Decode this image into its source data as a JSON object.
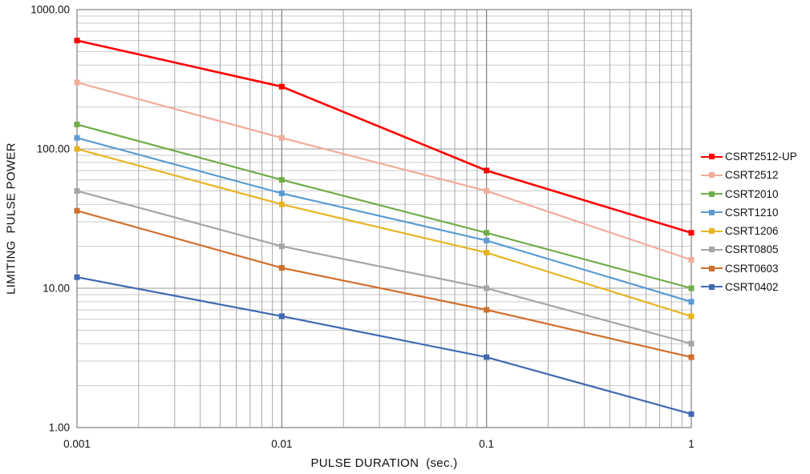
{
  "chart_data": {
    "type": "line",
    "title": "",
    "xlabel": "PULSE DURATION  (sec.)",
    "ylabel": "LIMITING  PULSE POWER",
    "x_scale": "log",
    "y_scale": "log",
    "xlim": [
      0.001,
      1
    ],
    "ylim": [
      1,
      1000
    ],
    "grid": "log major and minor gridlines, both axes",
    "legend_position": "right",
    "x": [
      0.001,
      0.01,
      0.1,
      1
    ],
    "x_tick_labels": [
      "0.001",
      "0.01",
      "0.1",
      "1"
    ],
    "y_ticks": [
      1000,
      100,
      10,
      1
    ],
    "y_tick_labels": [
      "1000.00",
      "100.00",
      "10.00",
      "1.00"
    ],
    "marker": "square",
    "series": [
      {
        "name": "CSRT2512-UP",
        "color": "#FF0000",
        "values": [
          600,
          280,
          70,
          25
        ]
      },
      {
        "name": "CSRT2512",
        "color": "#F1AC99",
        "values": [
          300,
          120,
          50,
          16
        ]
      },
      {
        "name": "CSRT2010",
        "color": "#70AD47",
        "values": [
          150,
          60,
          25,
          10
        ]
      },
      {
        "name": "CSRT1210",
        "color": "#5B9BD5",
        "values": [
          120,
          48,
          22,
          8
        ]
      },
      {
        "name": "CSRT1206",
        "color": "#E8B423",
        "values": [
          100,
          40,
          18,
          6.3
        ]
      },
      {
        "name": "CSRT0805",
        "color": "#A5A5A5",
        "values": [
          50,
          20,
          10,
          4
        ]
      },
      {
        "name": "CSRT0603",
        "color": "#D06F2B",
        "values": [
          36,
          14,
          7,
          3.2
        ]
      },
      {
        "name": "CSRT0402",
        "color": "#3F69B1",
        "values": [
          12,
          6.3,
          3.2,
          1.25
        ]
      }
    ],
    "colors": {
      "grid_minor_h": "#C9C9C9",
      "grid_minor_v": "#A8A8A8",
      "grid_major_inner": "#9A9A9A",
      "grid_major_decade_v": "#7F7F7F",
      "plot_border": "#7F7F7F",
      "text": "#111111",
      "background": "#FFFFFF"
    }
  }
}
